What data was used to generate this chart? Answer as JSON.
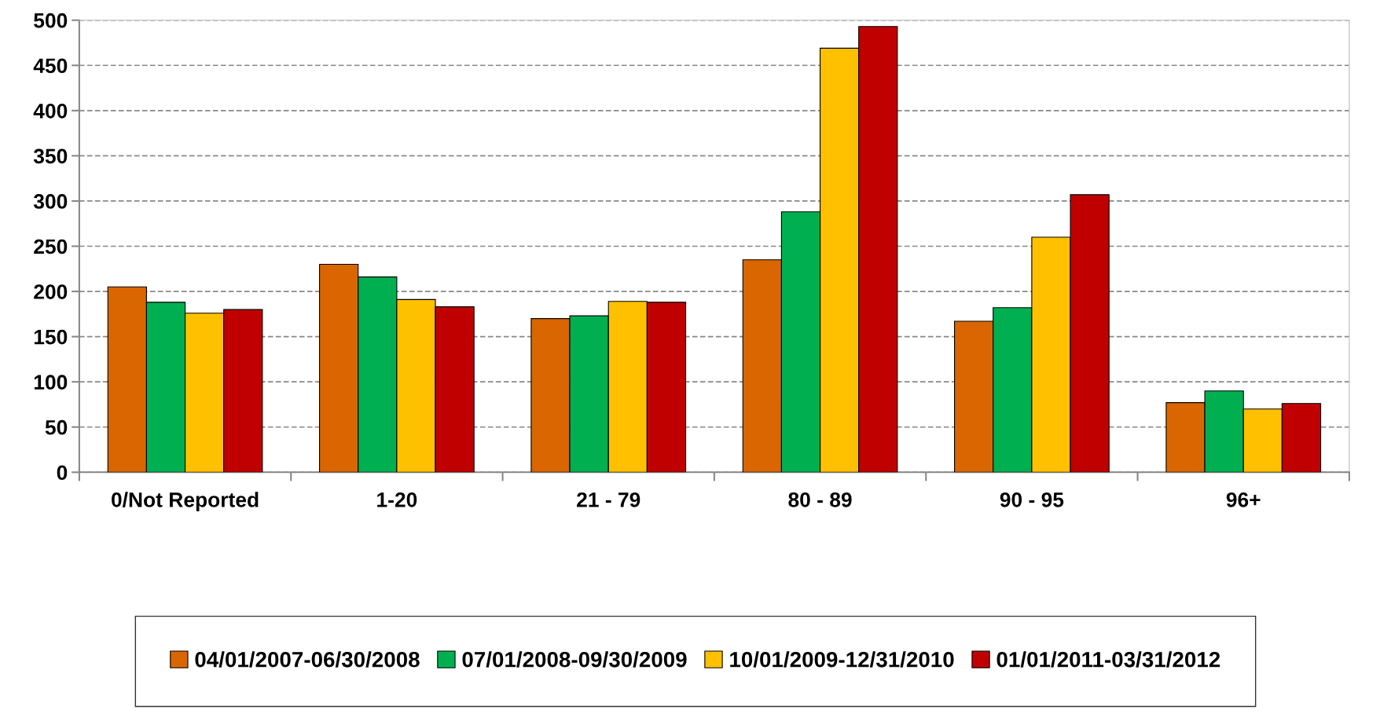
{
  "chart_data": {
    "type": "bar",
    "categories": [
      "0/Not Reported",
      "1-20",
      "21 - 79",
      "80 - 89",
      "90 - 95",
      "96+"
    ],
    "series": [
      {
        "name": "04/01/2007-06/30/2008",
        "color": "#d96600",
        "values": [
          205,
          230,
          170,
          235,
          167,
          77
        ]
      },
      {
        "name": "07/01/2008-09/30/2009",
        "color": "#00b050",
        "values": [
          188,
          216,
          173,
          288,
          182,
          90
        ]
      },
      {
        "name": "10/01/2009-12/31/2010",
        "color": "#ffc000",
        "values": [
          176,
          191,
          189,
          469,
          260,
          70
        ]
      },
      {
        "name": "01/01/2011-03/31/2012",
        "color": "#c00000",
        "values": [
          180,
          183,
          188,
          493,
          307,
          76
        ]
      }
    ],
    "ylim": [
      0,
      500
    ],
    "yticks": [
      0,
      50,
      100,
      150,
      200,
      250,
      300,
      350,
      400,
      450,
      500
    ],
    "grid": "y",
    "legend": "bottom"
  }
}
